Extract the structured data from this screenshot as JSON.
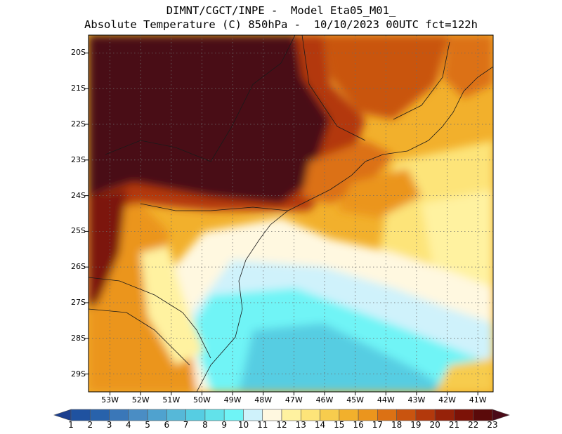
{
  "title": {
    "line1": "DIMNT/CGCT/INPE -  Model Eta05_M01_",
    "line2": "Absolute Temperature (C) 850hPa -  10/10/2023 00UTC fct=122h"
  },
  "map": {
    "lat_labels": [
      "20S",
      "21S",
      "22S",
      "23S",
      "24S",
      "25S",
      "26S",
      "27S",
      "28S",
      "29S"
    ],
    "lon_labels": [
      "53W",
      "52W",
      "51W",
      "50W",
      "49W",
      "48W",
      "47W",
      "46W",
      "45W",
      "44W",
      "43W",
      "42W",
      "41W"
    ],
    "lat_range": [
      -29.5,
      -19.5
    ],
    "lon_range": [
      -53.7,
      -40.5
    ],
    "grid": true
  },
  "colorbar": {
    "labels": [
      "1",
      "2",
      "3",
      "4",
      "5",
      "6",
      "7",
      "8",
      "9",
      "10",
      "11",
      "12",
      "13",
      "14",
      "15",
      "16",
      "17",
      "18",
      "19",
      "20",
      "21",
      "22",
      "23"
    ],
    "colors": [
      "#1b3f8f",
      "#1f52a0",
      "#2862ab",
      "#3a77b8",
      "#4a8dc4",
      "#4fa2cf",
      "#56b8d8",
      "#56cde2",
      "#62e2ea",
      "#6ff4f6",
      "#cff2fb",
      "#fff8e0",
      "#fff2a0",
      "#fde479",
      "#f7cc4d",
      "#f2b02c",
      "#eb951d",
      "#dc7114",
      "#c9540f",
      "#b3390c",
      "#962209",
      "#7c1207",
      "#5a0a0a",
      "#4a0a18"
    ]
  }
}
